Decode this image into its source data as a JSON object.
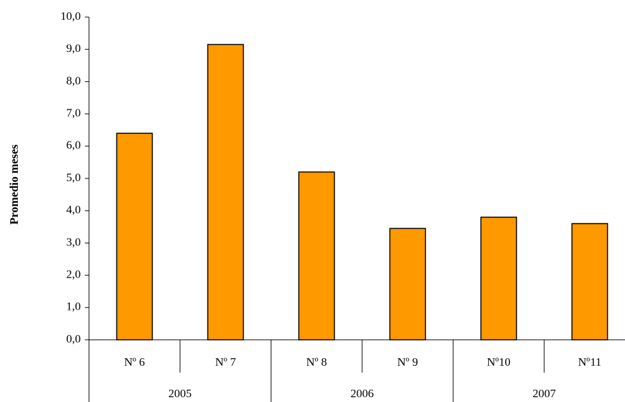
{
  "chart_data": {
    "type": "bar",
    "title": "",
    "xlabel": "",
    "ylabel": "Promedio meses",
    "ylim": [
      0,
      10
    ],
    "ytick_step": 1,
    "ytick_labels": [
      "0,0",
      "1,0",
      "2,0",
      "3,0",
      "4,0",
      "5,0",
      "6,0",
      "7,0",
      "8,0",
      "9,0",
      "10,0"
    ],
    "categories": [
      "Nº 6",
      "Nº 7",
      "Nº 8",
      "Nº 9",
      "Nº10",
      "Nº11"
    ],
    "values": [
      6.4,
      9.15,
      5.2,
      3.45,
      3.8,
      3.6
    ],
    "groups": [
      {
        "label": "2005",
        "span": 2
      },
      {
        "label": "2006",
        "span": 2
      },
      {
        "label": "2007",
        "span": 2
      }
    ],
    "bar_color": "#FF9900",
    "bar_edge_color": "#000000",
    "grid": false,
    "legend": "none"
  }
}
